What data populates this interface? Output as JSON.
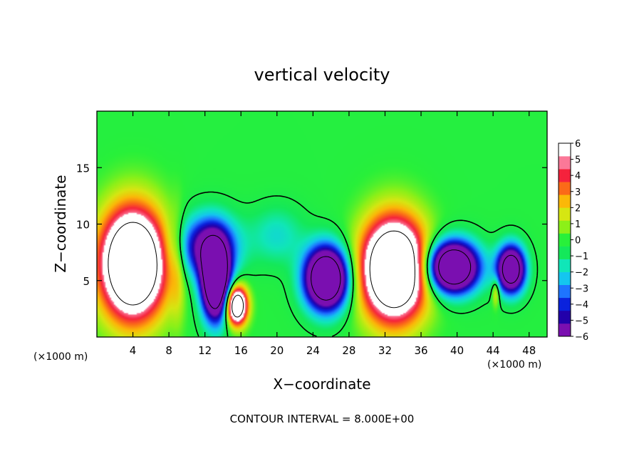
{
  "chart_data": {
    "type": "heatmap",
    "title": "vertical velocity",
    "xlabel": "X−coordinate",
    "ylabel": "Z−coordinate",
    "x_unit_label": "(×1000 m)",
    "y_unit_label": "(×1000 m)",
    "xlim": [
      0,
      50
    ],
    "ylim": [
      0,
      20
    ],
    "x_ticks": [
      4,
      8,
      12,
      16,
      20,
      24,
      28,
      32,
      36,
      40,
      44,
      48
    ],
    "y_ticks": [
      5,
      10,
      15
    ],
    "x_tick_labels": [
      "4",
      "8",
      "12",
      "16",
      "20",
      "24",
      "28",
      "32",
      "36",
      "40",
      "44",
      "48"
    ],
    "y_tick_labels": [
      "5",
      "10",
      "15"
    ],
    "colorbar_labels": [
      "6",
      "5",
      "4",
      "3",
      "2",
      "1",
      "0",
      "−1",
      "−2",
      "−3",
      "−4",
      "−5",
      "−6"
    ],
    "colorbar_range": [
      -6,
      6
    ],
    "colorscale": [
      "#7a0fb0",
      "#2200aa",
      "#0a22dd",
      "#1e74ff",
      "#14c6ef",
      "#10e6b8",
      "#14e85a",
      "#28f03a",
      "#8cf018",
      "#d6e612",
      "#fbb808",
      "#fb6a18",
      "#f5223c",
      "#fb7898",
      "#ffffff"
    ],
    "background_value": 0.3,
    "features": [
      {
        "x": 4,
        "z": 6.5,
        "rx": 4.2,
        "rz": 5.6,
        "w": 14
      },
      {
        "x": 33,
        "z": 6.0,
        "rx": 4.2,
        "rz": 5.2,
        "w": 14
      },
      {
        "x": 15.5,
        "z": 2.8,
        "rx": 1.4,
        "rz": 2.0,
        "w": 12
      },
      {
        "x": 13.2,
        "z": 4.8,
        "rx": 1.8,
        "rz": 3.8,
        "w": -14
      },
      {
        "x": 12.3,
        "z": 8.0,
        "rx": 3.8,
        "rz": 3.2,
        "w": -7
      },
      {
        "x": 25.5,
        "z": 5.2,
        "rx": 2.8,
        "rz": 3.2,
        "w": -14
      },
      {
        "x": 39.5,
        "z": 6.2,
        "rx": 3.3,
        "rz": 2.6,
        "w": -14
      },
      {
        "x": 46.0,
        "z": 6.0,
        "rx": 1.8,
        "rz": 2.4,
        "w": -12
      },
      {
        "x": 44.3,
        "z": 4.0,
        "rx": 0.5,
        "rz": 1.5,
        "w": 3
      },
      {
        "x": 20,
        "z": 9.0,
        "rx": 3.5,
        "rz": 3.0,
        "w": -2
      },
      {
        "x": 9,
        "z": 6.0,
        "rx": 0.9,
        "rz": 6.0,
        "w": 1.5
      }
    ],
    "contour_interval_label": "CONTOUR INTERVAL = 8.000E+00",
    "contour_levels": [
      0,
      8,
      -8
    ]
  }
}
